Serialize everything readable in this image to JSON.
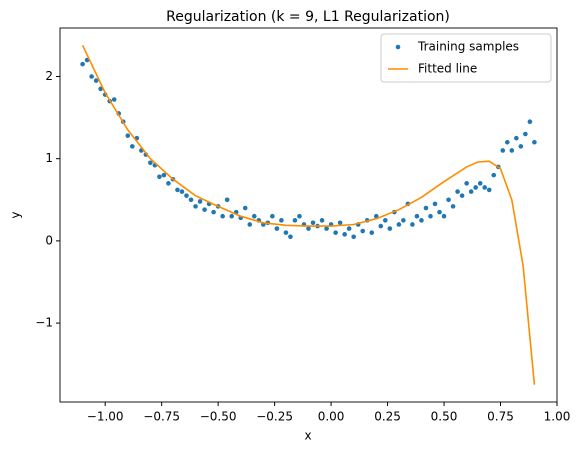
{
  "chart_data": {
    "type": "scatter-line",
    "title": "Regularization (k = 9, L1 Regularization)",
    "xlabel": "x",
    "ylabel": "y",
    "xlim": [
      -1.2,
      1.0
    ],
    "ylim": [
      -1.96,
      2.59
    ],
    "xticks": [
      {
        "value": -1.0,
        "label": "−1.00"
      },
      {
        "value": -0.75,
        "label": "−0.75"
      },
      {
        "value": -0.5,
        "label": "−0.50"
      },
      {
        "value": -0.25,
        "label": "−0.25"
      },
      {
        "value": 0,
        "label": "0.00"
      },
      {
        "value": 0.25,
        "label": "0.25"
      },
      {
        "value": 0.5,
        "label": "0.50"
      },
      {
        "value": 0.75,
        "label": "0.75"
      },
      {
        "value": 1.0,
        "label": "1.00"
      }
    ],
    "yticks": [
      {
        "value": -1,
        "label": "−1"
      },
      0,
      1,
      2
    ],
    "legend": "upper right",
    "series": [
      {
        "name": "Training samples",
        "kind": "scatter",
        "color": "#1f77b4",
        "x": [
          -1.1,
          -1.08,
          -1.06,
          -1.04,
          -1.02,
          -1.0,
          -0.98,
          -0.96,
          -0.94,
          -0.92,
          -0.9,
          -0.88,
          -0.86,
          -0.84,
          -0.82,
          -0.8,
          -0.78,
          -0.76,
          -0.74,
          -0.72,
          -0.7,
          -0.68,
          -0.66,
          -0.64,
          -0.62,
          -0.6,
          -0.58,
          -0.56,
          -0.54,
          -0.52,
          -0.5,
          -0.48,
          -0.46,
          -0.44,
          -0.42,
          -0.4,
          -0.38,
          -0.36,
          -0.34,
          -0.32,
          -0.3,
          -0.28,
          -0.26,
          -0.24,
          -0.22,
          -0.2,
          -0.18,
          -0.16,
          -0.14,
          -0.12,
          -0.1,
          -0.08,
          -0.06,
          -0.04,
          -0.02,
          0.0,
          0.02,
          0.04,
          0.06,
          0.08,
          0.1,
          0.12,
          0.14,
          0.16,
          0.18,
          0.2,
          0.22,
          0.24,
          0.26,
          0.28,
          0.3,
          0.32,
          0.34,
          0.36,
          0.38,
          0.4,
          0.42,
          0.44,
          0.46,
          0.48,
          0.5,
          0.52,
          0.54,
          0.56,
          0.58,
          0.6,
          0.62,
          0.64,
          0.66,
          0.68,
          0.7,
          0.72,
          0.74,
          0.76,
          0.78,
          0.8,
          0.82,
          0.84,
          0.86,
          0.88,
          0.9
        ],
        "values": [
          2.15,
          2.2,
          2.0,
          1.95,
          1.85,
          1.78,
          1.7,
          1.72,
          1.55,
          1.45,
          1.28,
          1.15,
          1.25,
          1.1,
          1.05,
          0.95,
          0.92,
          0.78,
          0.8,
          0.7,
          0.75,
          0.62,
          0.6,
          0.55,
          0.5,
          0.42,
          0.48,
          0.38,
          0.45,
          0.35,
          0.42,
          0.3,
          0.5,
          0.3,
          0.35,
          0.28,
          0.4,
          0.2,
          0.3,
          0.25,
          0.2,
          0.22,
          0.3,
          0.15,
          0.25,
          0.1,
          0.05,
          0.25,
          0.3,
          0.2,
          0.15,
          0.22,
          0.18,
          0.25,
          0.15,
          0.2,
          0.1,
          0.22,
          0.08,
          0.15,
          0.05,
          0.2,
          0.12,
          0.25,
          0.1,
          0.3,
          0.18,
          0.25,
          0.15,
          0.35,
          0.2,
          0.25,
          0.45,
          0.2,
          0.3,
          0.25,
          0.4,
          0.3,
          0.45,
          0.35,
          0.3,
          0.5,
          0.42,
          0.6,
          0.55,
          0.7,
          0.6,
          0.65,
          0.7,
          0.65,
          0.62,
          0.8,
          0.9,
          1.1,
          1.2,
          1.1,
          1.25,
          1.15,
          1.3,
          1.45,
          1.2
        ]
      },
      {
        "name": "Fitted line",
        "kind": "line",
        "color": "#ff8c00",
        "x": [
          -1.1,
          -1.0,
          -0.9,
          -0.8,
          -0.7,
          -0.6,
          -0.5,
          -0.4,
          -0.3,
          -0.2,
          -0.1,
          0,
          0.1,
          0.2,
          0.3,
          0.4,
          0.5,
          0.6,
          0.65,
          0.7,
          0.75,
          0.8,
          0.85,
          0.9
        ],
        "values": [
          2.38,
          1.8,
          1.35,
          1.0,
          0.75,
          0.55,
          0.42,
          0.3,
          0.22,
          0.19,
          0.18,
          0.18,
          0.2,
          0.27,
          0.38,
          0.53,
          0.72,
          0.9,
          0.96,
          0.97,
          0.88,
          0.5,
          -0.3,
          -1.75
        ]
      }
    ]
  }
}
